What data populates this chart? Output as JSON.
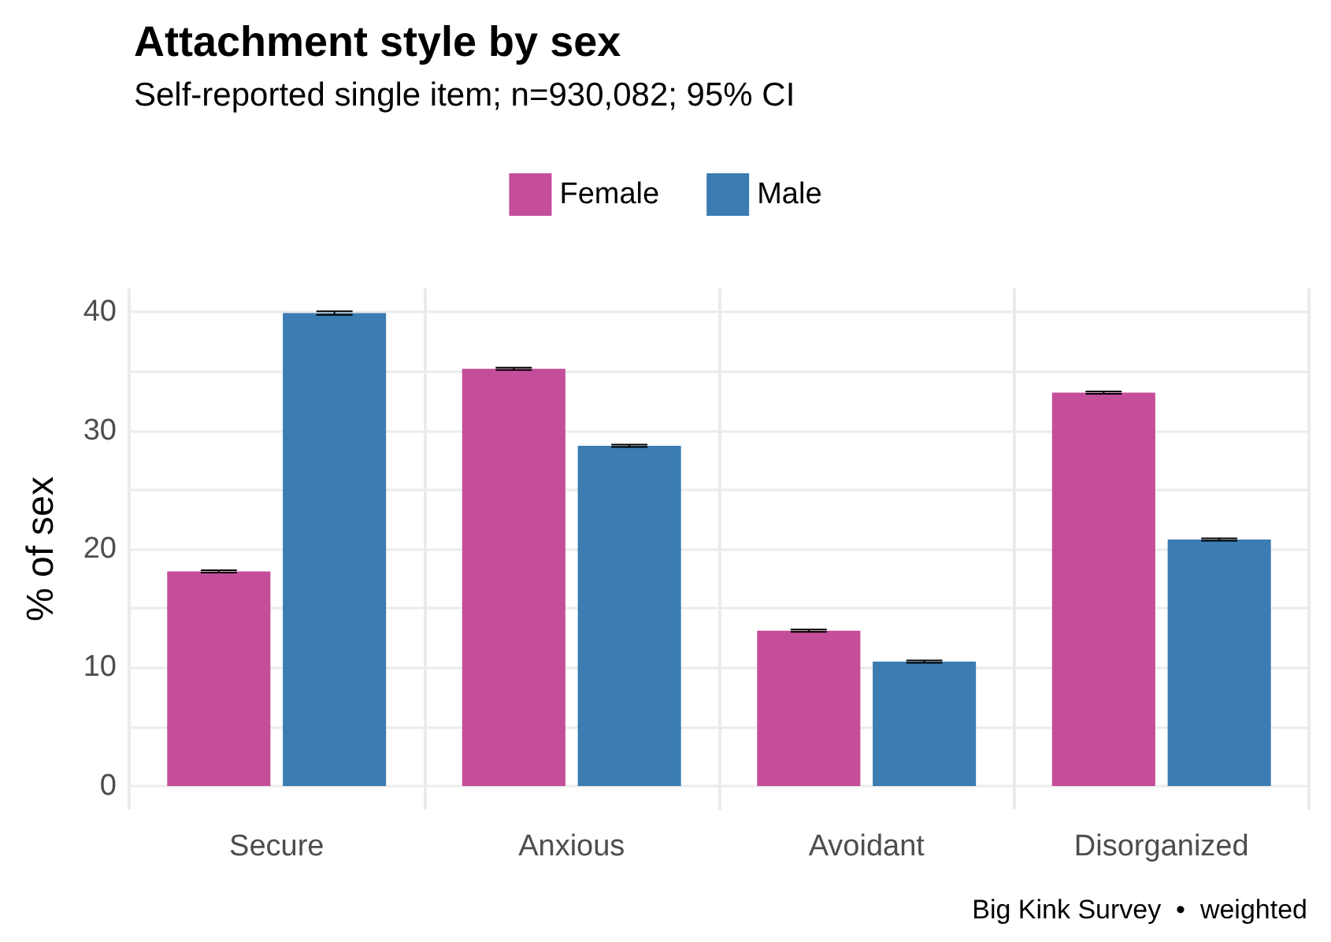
{
  "chart_data": {
    "type": "bar",
    "title": "Attachment style by sex",
    "subtitle": "Self-reported single item; n=930,082; 95% CI",
    "ylabel": "% of sex",
    "categories": [
      "Secure",
      "Anxious",
      "Avoidant",
      "Disorganized"
    ],
    "series": [
      {
        "name": "Female",
        "color": "#c44e9a",
        "values": [
          18.1,
          35.2,
          13.1,
          33.2
        ],
        "errors": [
          0.1,
          0.1,
          0.1,
          0.1
        ]
      },
      {
        "name": "Male",
        "color": "#3b7cb2",
        "values": [
          39.9,
          28.7,
          10.5,
          20.8
        ],
        "errors": [
          0.15,
          0.1,
          0.1,
          0.1
        ]
      }
    ],
    "ylim": [
      -2,
      42
    ],
    "yticks": [
      0,
      {
        "value": 5,
        "label": null
      },
      10,
      {
        "value": 15,
        "label": null
      },
      20,
      {
        "value": 25,
        "label": null
      },
      30,
      {
        "value": 35,
        "label": null
      },
      40
    ],
    "grid": true,
    "legend": "top",
    "annotations": [
      "Big Kink Survey  •  weighted"
    ]
  }
}
